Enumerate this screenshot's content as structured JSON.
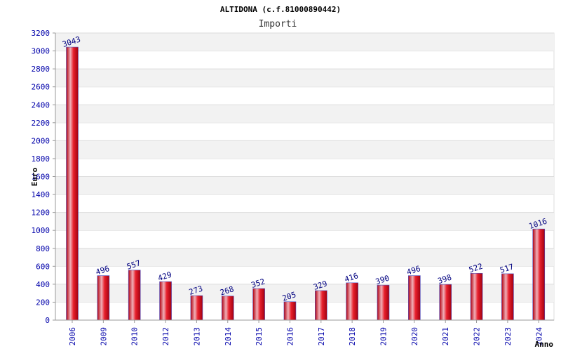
{
  "chart_data": {
    "type": "bar",
    "title": "ALTIDONA (c.f.81000890442)",
    "subtitle": "Importi",
    "ylabel": "Euro",
    "xlabel": "Anno",
    "ylim": [
      0,
      3200
    ],
    "ytick_step": 200,
    "grid": true,
    "categories": [
      "2006",
      "2009",
      "2010",
      "2012",
      "2013",
      "2014",
      "2015",
      "2016",
      "2017",
      "2018",
      "2019",
      "2020",
      "2021",
      "2022",
      "2023",
      "2024"
    ],
    "values": [
      3043,
      496,
      557,
      429,
      273,
      268,
      352,
      205,
      329,
      416,
      390,
      496,
      398,
      522,
      517,
      1016
    ],
    "colors": {
      "bar": "#e8202c",
      "bar_highlight": "#f0b0b8",
      "bar_edge": "#5050c0",
      "band": "#f2f2f2",
      "label": "#000080",
      "tick": "#0000aa"
    }
  }
}
